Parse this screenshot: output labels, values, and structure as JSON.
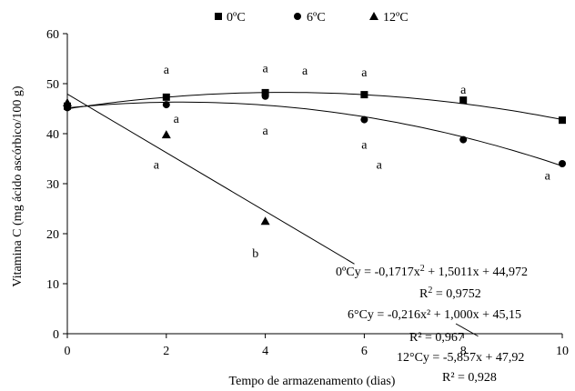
{
  "chart_data": {
    "type": "scatter",
    "title": "",
    "xlabel": "Tempo de armazenamento (dias)",
    "ylabel": "Vitamina C (mg ácido ascórbico/100 g)",
    "xlim": [
      0,
      10
    ],
    "ylim": [
      0,
      60
    ],
    "x_ticks": [
      "0",
      "2",
      "4",
      "6",
      "8",
      "10"
    ],
    "y_ticks": [
      "0",
      "10",
      "20",
      "30",
      "40",
      "50",
      "60"
    ],
    "grid": false,
    "legend_position": "top",
    "series": [
      {
        "name": "0ºC",
        "marker": "square",
        "points": [
          {
            "x": 0,
            "y": 45.5
          },
          {
            "x": 2,
            "y": 47.3
          },
          {
            "x": 4,
            "y": 48.2
          },
          {
            "x": 6,
            "y": 47.8
          },
          {
            "x": 8,
            "y": 46.7
          },
          {
            "x": 10,
            "y": 42.7
          }
        ],
        "fit": {
          "type": "poly2",
          "a": -0.1717,
          "b": 1.5011,
          "c": 44.972,
          "x_range": [
            0,
            10
          ]
        },
        "equation": "0ºCy = -0,1717x",
        "equation_sup": "2",
        "equation_rest": " + 1,5011x + 44,972",
        "r2": "R",
        "r2_sup": "2",
        "r2_value": " = 0,9752"
      },
      {
        "name": "6ºC",
        "marker": "circle",
        "points": [
          {
            "x": 0,
            "y": 45.2
          },
          {
            "x": 2,
            "y": 45.8
          },
          {
            "x": 4,
            "y": 47.5
          },
          {
            "x": 6,
            "y": 42.8
          },
          {
            "x": 8,
            "y": 38.8
          },
          {
            "x": 10,
            "y": 34.0
          }
        ],
        "fit": {
          "type": "poly2",
          "a": -0.216,
          "b": 1.0,
          "c": 45.15,
          "x_range": [
            0,
            10
          ]
        },
        "equation": "6°Cy = -0,216x² + 1,000x + 45,15",
        "r2": "R² = 0,967"
      },
      {
        "name": "12ºC",
        "marker": "triangle",
        "points": [
          {
            "x": 0,
            "y": 46.2
          },
          {
            "x": 2,
            "y": 39.8
          },
          {
            "x": 4,
            "y": 22.5
          }
        ],
        "fit": {
          "type": "linear",
          "m": -5.857,
          "q": 47.92,
          "x_range": [
            0,
            5.8
          ]
        },
        "equation": "12°Cy = -5,857x + 47,92",
        "r2": "R² = 0,928"
      }
    ],
    "annotations": [
      {
        "text": "a",
        "x": 2,
        "y": 52.0
      },
      {
        "text": "a",
        "x": 4,
        "y": 52.3
      },
      {
        "text": "a",
        "x": 4.8,
        "y": 51.8
      },
      {
        "text": "a",
        "x": 6,
        "y": 51.5
      },
      {
        "text": "a",
        "x": 8,
        "y": 48.0
      },
      {
        "text": "a",
        "x": 2.2,
        "y": 42.2
      },
      {
        "text": "a",
        "x": 4,
        "y": 39.8
      },
      {
        "text": "a",
        "x": 1.8,
        "y": 33.0
      },
      {
        "text": "a",
        "x": 6,
        "y": 37.0
      },
      {
        "text": "a",
        "x": 6.3,
        "y": 33.0
      },
      {
        "text": "a",
        "x": 9.7,
        "y": 30.8
      },
      {
        "text": "b",
        "x": 3.8,
        "y": 15.3
      }
    ]
  }
}
